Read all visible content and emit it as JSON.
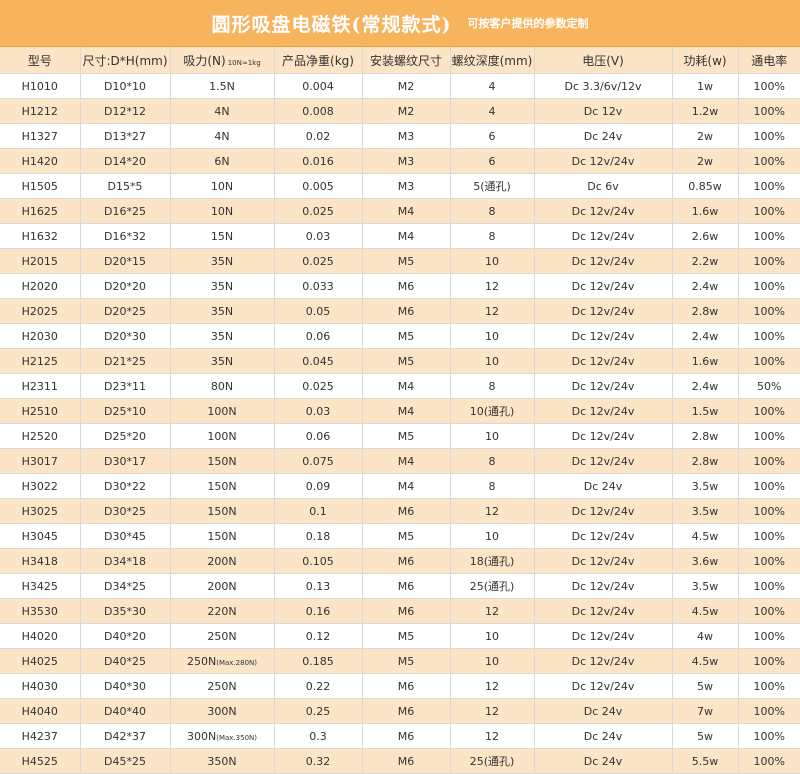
{
  "title": "圆形吸盘电磁铁(常规款式)",
  "subtitle": "可按客户提供的参数定制",
  "headers": {
    "model": "型号",
    "size": "尺寸:D*H(mm)",
    "force": "吸力(N)",
    "force_note": "10N≈1kg",
    "weight": "产品净重(kg)",
    "thread": "安装螺纹尺寸",
    "depth": "螺纹深度(mm)",
    "voltage": "电压(V)",
    "power": "功耗(w)",
    "duty": "通电率"
  },
  "rows": [
    {
      "model": "H1010",
      "size": "D10*10",
      "force": "1.5N",
      "force_max": "",
      "weight": "0.004",
      "thread": "M2",
      "depth": "4",
      "voltage": "Dc 3.3/6v/12v",
      "power": "1w",
      "duty": "100%"
    },
    {
      "model": "H1212",
      "size": "D12*12",
      "force": "4N",
      "force_max": "",
      "weight": "0.008",
      "thread": "M2",
      "depth": "4",
      "voltage": "Dc 12v",
      "power": "1.2w",
      "duty": "100%"
    },
    {
      "model": "H1327",
      "size": "D13*27",
      "force": "4N",
      "force_max": "",
      "weight": "0.02",
      "thread": "M3",
      "depth": "6",
      "voltage": "Dc 24v",
      "power": "2w",
      "duty": "100%"
    },
    {
      "model": "H1420",
      "size": "D14*20",
      "force": "6N",
      "force_max": "",
      "weight": "0.016",
      "thread": "M3",
      "depth": "6",
      "voltage": "Dc 12v/24v",
      "power": "2w",
      "duty": "100%"
    },
    {
      "model": "H1505",
      "size": "D15*5",
      "force": "10N",
      "force_max": "",
      "weight": "0.005",
      "thread": "M3",
      "depth": "5(通孔)",
      "voltage": "Dc 6v",
      "power": "0.85w",
      "duty": "100%"
    },
    {
      "model": "H1625",
      "size": "D16*25",
      "force": "10N",
      "force_max": "",
      "weight": "0.025",
      "thread": "M4",
      "depth": "8",
      "voltage": "Dc 12v/24v",
      "power": "1.6w",
      "duty": "100%"
    },
    {
      "model": "H1632",
      "size": "D16*32",
      "force": "15N",
      "force_max": "",
      "weight": "0.03",
      "thread": "M4",
      "depth": "8",
      "voltage": "Dc 12v/24v",
      "power": "2.6w",
      "duty": "100%"
    },
    {
      "model": "H2015",
      "size": "D20*15",
      "force": "35N",
      "force_max": "",
      "weight": "0.025",
      "thread": "M5",
      "depth": "10",
      "voltage": "Dc 12v/24v",
      "power": "2.2w",
      "duty": "100%"
    },
    {
      "model": "H2020",
      "size": "D20*20",
      "force": "35N",
      "force_max": "",
      "weight": "0.033",
      "thread": "M6",
      "depth": "12",
      "voltage": "Dc 12v/24v",
      "power": "2.4w",
      "duty": "100%"
    },
    {
      "model": "H2025",
      "size": "D20*25",
      "force": "35N",
      "force_max": "",
      "weight": "0.05",
      "thread": "M6",
      "depth": "12",
      "voltage": "Dc 12v/24v",
      "power": "2.8w",
      "duty": "100%"
    },
    {
      "model": "H2030",
      "size": "D20*30",
      "force": "35N",
      "force_max": "",
      "weight": "0.06",
      "thread": "M5",
      "depth": "10",
      "voltage": "Dc 12v/24v",
      "power": "2.4w",
      "duty": "100%"
    },
    {
      "model": "H2125",
      "size": "D21*25",
      "force": "35N",
      "force_max": "",
      "weight": "0.045",
      "thread": "M5",
      "depth": "10",
      "voltage": "Dc 12v/24v",
      "power": "1.6w",
      "duty": "100%"
    },
    {
      "model": "H2311",
      "size": "D23*11",
      "force": "80N",
      "force_max": "",
      "weight": "0.025",
      "thread": "M4",
      "depth": "8",
      "voltage": "Dc 12v/24v",
      "power": "2.4w",
      "duty": "50%"
    },
    {
      "model": "H2510",
      "size": "D25*10",
      "force": "100N",
      "force_max": "",
      "weight": "0.03",
      "thread": "M4",
      "depth": "10(通孔)",
      "voltage": "Dc 12v/24v",
      "power": "1.5w",
      "duty": "100%"
    },
    {
      "model": "H2520",
      "size": "D25*20",
      "force": "100N",
      "force_max": "",
      "weight": "0.06",
      "thread": "M5",
      "depth": "10",
      "voltage": "Dc 12v/24v",
      "power": "2.8w",
      "duty": "100%"
    },
    {
      "model": "H3017",
      "size": "D30*17",
      "force": "150N",
      "force_max": "",
      "weight": "0.075",
      "thread": "M4",
      "depth": "8",
      "voltage": "Dc 12v/24v",
      "power": "2.8w",
      "duty": "100%"
    },
    {
      "model": "H3022",
      "size": "D30*22",
      "force": "150N",
      "force_max": "",
      "weight": "0.09",
      "thread": "M4",
      "depth": "8",
      "voltage": "Dc 24v",
      "power": "3.5w",
      "duty": "100%"
    },
    {
      "model": "H3025",
      "size": "D30*25",
      "force": "150N",
      "force_max": "",
      "weight": "0.1",
      "thread": "M6",
      "depth": "12",
      "voltage": "Dc 12v/24v",
      "power": "3.5w",
      "duty": "100%"
    },
    {
      "model": "H3045",
      "size": "D30*45",
      "force": "150N",
      "force_max": "",
      "weight": "0.18",
      "thread": "M5",
      "depth": "10",
      "voltage": "Dc 12v/24v",
      "power": "4.5w",
      "duty": "100%"
    },
    {
      "model": "H3418",
      "size": "D34*18",
      "force": "200N",
      "force_max": "",
      "weight": "0.105",
      "thread": "M6",
      "depth": "18(通孔)",
      "voltage": "Dc 12v/24v",
      "power": "3.6w",
      "duty": "100%"
    },
    {
      "model": "H3425",
      "size": "D34*25",
      "force": "200N",
      "force_max": "",
      "weight": "0.13",
      "thread": "M6",
      "depth": "25(通孔)",
      "voltage": "Dc 12v/24v",
      "power": "3.5w",
      "duty": "100%"
    },
    {
      "model": "H3530",
      "size": "D35*30",
      "force": "220N",
      "force_max": "",
      "weight": "0.16",
      "thread": "M6",
      "depth": "12",
      "voltage": "Dc 12v/24v",
      "power": "4.5w",
      "duty": "100%"
    },
    {
      "model": "H4020",
      "size": "D40*20",
      "force": "250N",
      "force_max": "",
      "weight": "0.12",
      "thread": "M5",
      "depth": "10",
      "voltage": "Dc 12v/24v",
      "power": "4w",
      "duty": "100%"
    },
    {
      "model": "H4025",
      "size": "D40*25",
      "force": "250N",
      "force_max": "(Max.280N)",
      "weight": "0.185",
      "thread": "M5",
      "depth": "10",
      "voltage": "Dc 12v/24v",
      "power": "4.5w",
      "duty": "100%"
    },
    {
      "model": "H4030",
      "size": "D40*30",
      "force": "250N",
      "force_max": "",
      "weight": "0.22",
      "thread": "M6",
      "depth": "12",
      "voltage": "Dc 12v/24v",
      "power": "5w",
      "duty": "100%"
    },
    {
      "model": "H4040",
      "size": "D40*40",
      "force": "300N",
      "force_max": "",
      "weight": "0.25",
      "thread": "M6",
      "depth": "12",
      "voltage": "Dc 24v",
      "power": "7w",
      "duty": "100%"
    },
    {
      "model": "H4237",
      "size": "D42*37",
      "force": "300N",
      "force_max": "(Max.350N)",
      "weight": "0.3",
      "thread": "M6",
      "depth": "12",
      "voltage": "Dc 24v",
      "power": "5w",
      "duty": "100%"
    },
    {
      "model": "H4525",
      "size": "D45*25",
      "force": "350N",
      "force_max": "",
      "weight": "0.32",
      "thread": "M6",
      "depth": "25(通孔)",
      "voltage": "Dc 24v",
      "power": "5.5w",
      "duty": "100%"
    }
  ]
}
